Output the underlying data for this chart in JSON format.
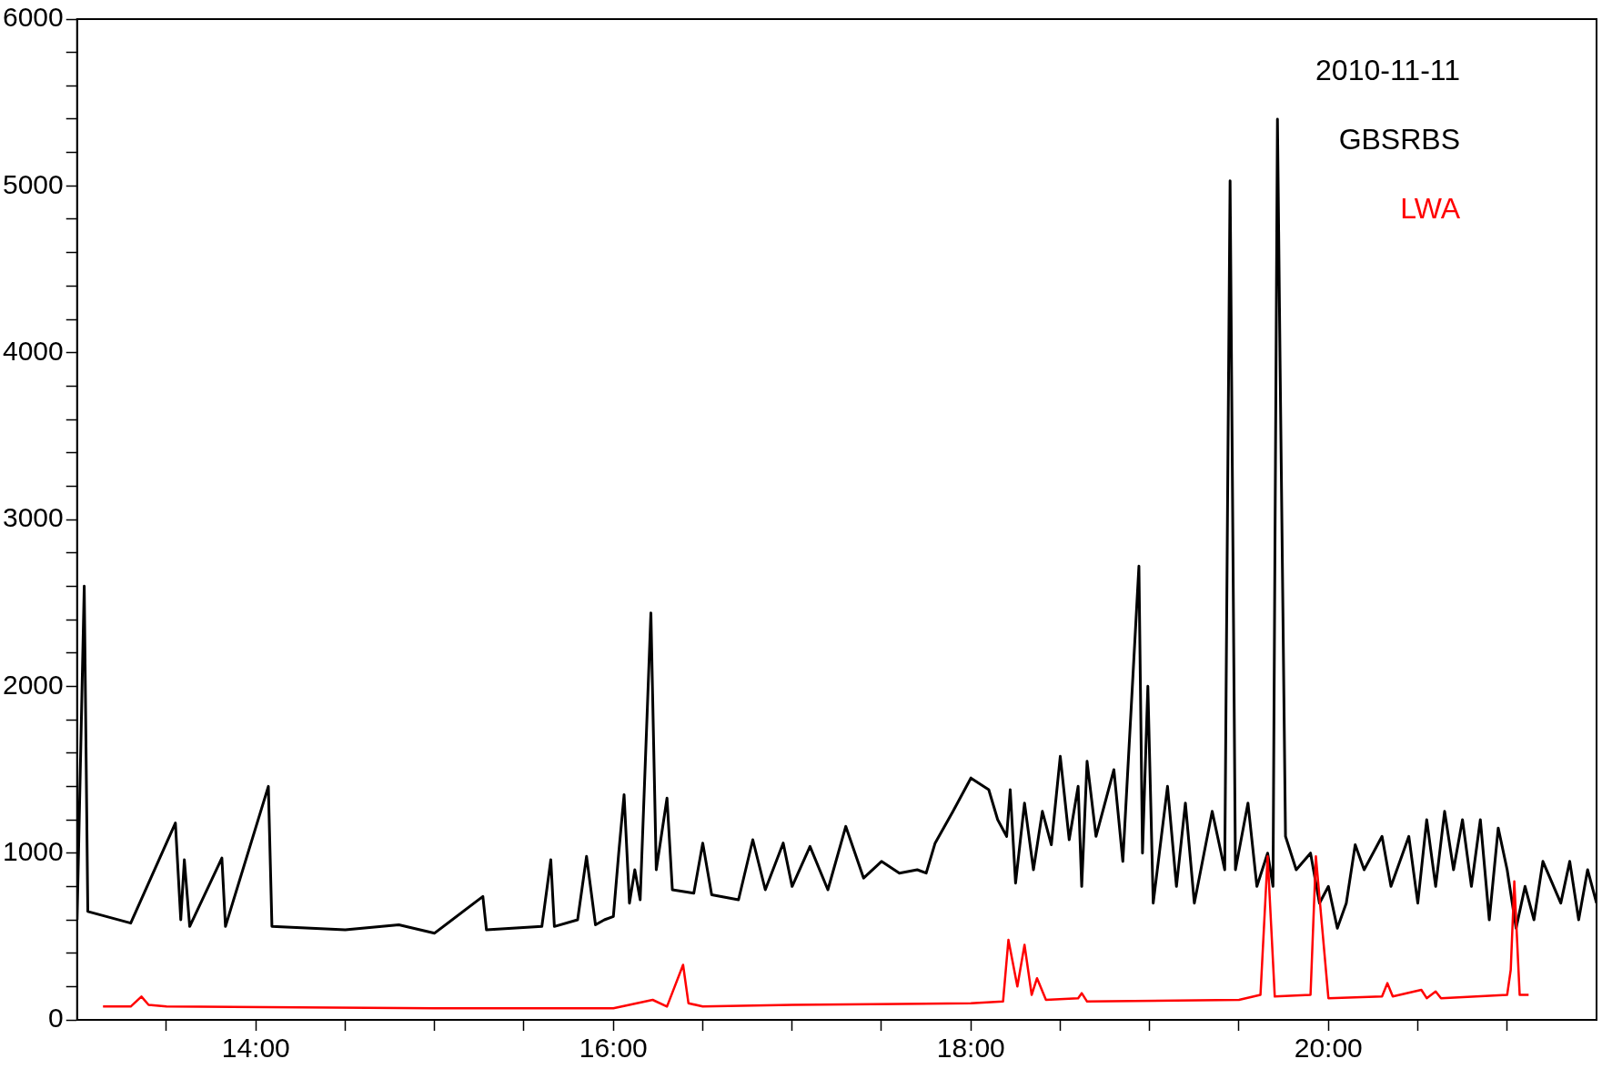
{
  "chart_data": {
    "type": "line",
    "annotations": [
      "2010-11-11"
    ],
    "legend": "top right",
    "grid": false,
    "marker": "none",
    "line_style": "solid",
    "xlim": [
      13,
      21.5
    ],
    "xticks": [
      {
        "value": 13.5,
        "label": null
      },
      {
        "value": 14,
        "label": "14:00"
      },
      {
        "value": 14.5,
        "label": null
      },
      {
        "value": 15,
        "label": null
      },
      {
        "value": 15.5,
        "label": null
      },
      {
        "value": 16,
        "label": "16:00"
      },
      {
        "value": 16.5,
        "label": null
      },
      {
        "value": 17,
        "label": null
      },
      {
        "value": 17.5,
        "label": null
      },
      {
        "value": 18,
        "label": "18:00"
      },
      {
        "value": 18.5,
        "label": null
      },
      {
        "value": 19,
        "label": null
      },
      {
        "value": 19.5,
        "label": null
      },
      {
        "value": 20,
        "label": "20:00"
      },
      {
        "value": 20.5,
        "label": null
      },
      {
        "value": 21,
        "label": null
      }
    ],
    "ylim": [
      0,
      6000
    ],
    "yticks": [
      0,
      {
        "value": 200,
        "label": null
      },
      {
        "value": 400,
        "label": null
      },
      {
        "value": 600,
        "label": null
      },
      {
        "value": 800,
        "label": null
      },
      1000,
      {
        "value": 1200,
        "label": null
      },
      {
        "value": 1400,
        "label": null
      },
      {
        "value": 1600,
        "label": null
      },
      {
        "value": 1800,
        "label": null
      },
      2000,
      {
        "value": 2200,
        "label": null
      },
      {
        "value": 2400,
        "label": null
      },
      {
        "value": 2600,
        "label": null
      },
      {
        "value": 2800,
        "label": null
      },
      3000,
      {
        "value": 3200,
        "label": null
      },
      {
        "value": 3400,
        "label": null
      },
      {
        "value": 3600,
        "label": null
      },
      {
        "value": 3800,
        "label": null
      },
      4000,
      {
        "value": 4200,
        "label": null
      },
      {
        "value": 4400,
        "label": null
      },
      {
        "value": 4600,
        "label": null
      },
      {
        "value": 4800,
        "label": null
      },
      5000,
      {
        "value": 5200,
        "label": null
      },
      {
        "value": 5400,
        "label": null
      },
      {
        "value": 5600,
        "label": null
      },
      {
        "value": 5800,
        "label": null
      },
      6000
    ],
    "series": [
      {
        "name": "GBSRBS",
        "color": "#000000",
        "x": [
          13.0,
          13.04,
          13.06,
          13.3,
          13.55,
          13.58,
          13.6,
          13.63,
          13.81,
          13.83,
          14.07,
          14.09,
          14.5,
          14.8,
          15.0,
          15.27,
          15.29,
          15.6,
          15.65,
          15.67,
          15.8,
          15.85,
          15.9,
          15.95,
          16.0,
          16.03,
          16.06,
          16.09,
          16.12,
          16.15,
          16.21,
          16.24,
          16.3,
          16.33,
          16.45,
          16.5,
          16.55,
          16.7,
          16.78,
          16.85,
          16.95,
          17.0,
          17.1,
          17.2,
          17.3,
          17.4,
          17.5,
          17.6,
          17.7,
          17.75,
          17.8,
          17.9,
          18.0,
          18.1,
          18.15,
          18.2,
          18.22,
          18.25,
          18.3,
          18.35,
          18.4,
          18.45,
          18.5,
          18.55,
          18.6,
          18.62,
          18.65,
          18.7,
          18.8,
          18.85,
          18.94,
          18.96,
          18.99,
          19.02,
          19.1,
          19.15,
          19.2,
          19.25,
          19.35,
          19.42,
          19.45,
          19.48,
          19.55,
          19.6,
          19.66,
          19.69,
          19.715,
          19.73,
          19.76,
          19.82,
          19.9,
          19.95,
          20.0,
          20.05,
          20.1,
          20.15,
          20.2,
          20.3,
          20.35,
          20.45,
          20.5,
          20.55,
          20.6,
          20.65,
          20.7,
          20.75,
          20.8,
          20.85,
          20.9,
          20.95,
          21.0,
          21.05,
          21.1,
          21.15,
          21.2,
          21.3,
          21.35,
          21.4,
          21.45,
          21.5
        ],
        "values": [
          600,
          2600,
          650,
          580,
          1180,
          600,
          960,
          560,
          970,
          560,
          1400,
          560,
          540,
          570,
          520,
          740,
          540,
          560,
          960,
          560,
          600,
          980,
          570,
          600,
          620,
          1000,
          1350,
          700,
          900,
          720,
          2440,
          900,
          1330,
          780,
          760,
          1060,
          750,
          720,
          1080,
          780,
          1060,
          800,
          1040,
          780,
          1160,
          850,
          950,
          880,
          900,
          880,
          1060,
          1250,
          1450,
          1380,
          1200,
          1100,
          1380,
          820,
          1300,
          900,
          1250,
          1050,
          1580,
          1080,
          1400,
          800,
          1550,
          1100,
          1500,
          950,
          2720,
          1000,
          2000,
          700,
          1400,
          800,
          1300,
          700,
          1250,
          900,
          5030,
          900,
          1300,
          800,
          1000,
          800,
          5400,
          3900,
          1100,
          900,
          1000,
          700,
          800,
          550,
          700,
          1050,
          900,
          1100,
          800,
          1100,
          700,
          1200,
          800,
          1250,
          900,
          1200,
          800,
          1200,
          600,
          1150,
          900,
          550,
          800,
          600,
          950,
          700,
          950,
          600,
          900,
          700
        ]
      },
      {
        "name": "LWA",
        "color": "#ff0000",
        "x": [
          13.145,
          13.3,
          13.36,
          13.4,
          13.5,
          15.0,
          16.0,
          16.22,
          16.3,
          16.39,
          16.42,
          16.5,
          17.0,
          18.0,
          18.18,
          18.21,
          18.26,
          18.3,
          18.34,
          18.37,
          18.42,
          18.6,
          18.62,
          18.65,
          19.5,
          19.62,
          19.66,
          19.7,
          19.9,
          19.93,
          20.0,
          20.3,
          20.33,
          20.36,
          20.52,
          20.55,
          20.6,
          20.63,
          21.0,
          21.02,
          21.04,
          21.07,
          21.12
        ],
        "values": [
          80,
          80,
          140,
          90,
          80,
          70,
          70,
          120,
          80,
          330,
          100,
          80,
          90,
          100,
          110,
          480,
          200,
          450,
          150,
          250,
          120,
          130,
          160,
          110,
          120,
          150,
          980,
          140,
          150,
          980,
          130,
          140,
          220,
          140,
          180,
          130,
          170,
          130,
          150,
          300,
          830,
          150,
          150
        ]
      }
    ]
  }
}
